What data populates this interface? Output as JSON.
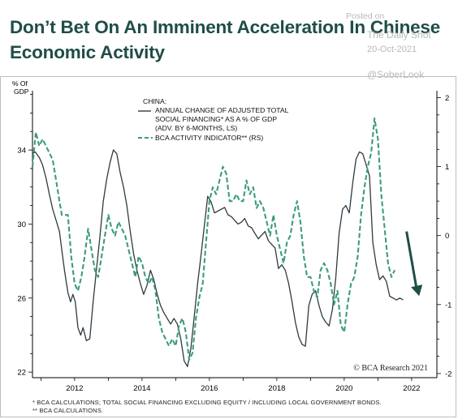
{
  "header": {
    "title": "Don’t Bet On An Imminent Acceleration In Chinese Economic Activity",
    "wm_posted": "Posted on",
    "wm_source": "The Daily Shot",
    "wm_date": "20-Oct-2021",
    "wm_handle": "@SoberLook"
  },
  "footnotes": {
    "line1": "*  BCA CALCULATIONS; TOTAL SOCIAL FINANCING EXCLUDING EQUITY / INCLUDING LOCAL GOVERNMENT BONDS.",
    "line2": "** BCA CALCULATIONS."
  },
  "colors": {
    "title": "#1f4d47",
    "series1": "#2e3a42",
    "series2": "#3c9c7c",
    "arrow": "#1f4d47"
  },
  "chart_data": {
    "type": "line",
    "title": "",
    "ylabel_left": "% Of GDP",
    "legend_header": "CHINA:",
    "legend": [
      "ANNUAL CHANGE OF ADJUSTED TOTAL SOCIAL FINANCING* AS A % OF GDP (ADV. BY 6-MONTHS, LS)",
      "BCA ACTIVITY INDICATOR** (RS)"
    ],
    "legend_lines": [
      "ANNUAL CHANGE OF ADJUSTED TOTAL",
      "SOCIAL FINANCING* AS A % OF GDP",
      "(ADV. BY 6-MONTHS, LS)",
      "BCA ACTIVITY INDICATOR** (RS)"
    ],
    "legend_position": "top-center",
    "copyright": "© BCA Research 2021",
    "x_ticks": [
      2012,
      2014,
      2016,
      2018,
      2020,
      2022
    ],
    "xlim": [
      2010.75,
      2022.75
    ],
    "left_axis": {
      "ticks": [
        22,
        26,
        30,
        34
      ],
      "ylim": [
        21.7,
        37.2
      ]
    },
    "right_axis": {
      "ticks": [
        -2,
        -1,
        0,
        1,
        2
      ],
      "ylim": [
        -2.06,
        2.1
      ]
    },
    "grid": false,
    "series": [
      {
        "axis": "left",
        "style": "solid",
        "x": [
          2010.75,
          2010.83,
          2010.95,
          2011.05,
          2011.15,
          2011.25,
          2011.35,
          2011.45,
          2011.55,
          2011.62,
          2011.7,
          2011.8,
          2011.88,
          2011.95,
          2012.02,
          2012.1,
          2012.18,
          2012.25,
          2012.35,
          2012.45,
          2012.55,
          2012.65,
          2012.75,
          2012.85,
          2012.95,
          2013.05,
          2013.15,
          2013.25,
          2013.35,
          2013.45,
          2013.55,
          2013.65,
          2013.75,
          2013.85,
          2013.95,
          2014.05,
          2014.15,
          2014.25,
          2014.35,
          2014.45,
          2014.55,
          2014.65,
          2014.75,
          2014.85,
          2014.95,
          2015.05,
          2015.15,
          2015.25,
          2015.35,
          2015.45,
          2015.55,
          2015.65,
          2015.75,
          2015.85,
          2015.95,
          2016.05,
          2016.15,
          2016.25,
          2016.35,
          2016.45,
          2016.55,
          2016.65,
          2016.75,
          2016.85,
          2016.95,
          2017.05,
          2017.15,
          2017.25,
          2017.35,
          2017.45,
          2017.55,
          2017.65,
          2017.75,
          2017.85,
          2017.95,
          2018.05,
          2018.15,
          2018.25,
          2018.35,
          2018.45,
          2018.55,
          2018.65,
          2018.75,
          2018.85,
          2018.95,
          2019.05,
          2019.15,
          2019.25,
          2019.35,
          2019.45,
          2019.55,
          2019.65,
          2019.75,
          2019.85,
          2019.95,
          2020.05,
          2020.15,
          2020.25,
          2020.35,
          2020.45,
          2020.55,
          2020.65,
          2020.75,
          2020.85,
          2020.95,
          2021.05,
          2021.15,
          2021.25,
          2021.35,
          2021.45,
          2021.55,
          2021.65,
          2021.75
        ],
        "y": [
          33.8,
          33.9,
          33.6,
          33.2,
          32.5,
          31.6,
          30.8,
          30.2,
          29.6,
          28.6,
          27.5,
          26.3,
          25.8,
          26.2,
          25.8,
          24.4,
          24.0,
          24.4,
          23.7,
          23.8,
          25.8,
          27.6,
          29.3,
          31.2,
          32.4,
          33.3,
          34.0,
          33.8,
          32.8,
          32.0,
          31.0,
          29.6,
          28.4,
          27.5,
          26.8,
          26.2,
          26.7,
          27.5,
          27.0,
          26.2,
          25.6,
          25.2,
          24.9,
          24.6,
          24.9,
          24.6,
          23.8,
          22.6,
          22.3,
          23.3,
          25.0,
          26.8,
          28.3,
          29.9,
          31.5,
          31.2,
          30.6,
          30.7,
          30.8,
          30.9,
          30.5,
          30.4,
          30.2,
          30.0,
          30.1,
          30.3,
          29.9,
          29.8,
          29.5,
          29.2,
          29.4,
          29.6,
          29.1,
          28.9,
          28.7,
          27.6,
          27.8,
          27.5,
          26.8,
          25.8,
          24.7,
          23.9,
          23.5,
          23.4,
          25.6,
          26.2,
          26.4,
          25.6,
          25.0,
          24.7,
          24.5,
          25.4,
          27.1,
          29.5,
          30.8,
          31.0,
          30.6,
          32.2,
          33.5,
          33.9,
          33.8,
          33.2,
          32.6,
          29.0,
          27.8,
          27.0,
          27.2,
          26.9,
          26.1,
          26.0,
          25.9,
          26.0,
          25.9
        ]
      },
      {
        "axis": "right",
        "style": "dashed",
        "x": [
          2010.75,
          2010.85,
          2010.95,
          2011.05,
          2011.15,
          2011.25,
          2011.35,
          2011.45,
          2011.55,
          2011.62,
          2011.7,
          2011.8,
          2011.9,
          2012.0,
          2012.1,
          2012.2,
          2012.3,
          2012.4,
          2012.5,
          2012.6,
          2012.7,
          2012.8,
          2012.9,
          2013.0,
          2013.1,
          2013.2,
          2013.3,
          2013.4,
          2013.5,
          2013.6,
          2013.7,
          2013.8,
          2013.9,
          2014.0,
          2014.1,
          2014.2,
          2014.3,
          2014.4,
          2014.5,
          2014.6,
          2014.7,
          2014.8,
          2014.9,
          2015.0,
          2015.1,
          2015.2,
          2015.3,
          2015.4,
          2015.5,
          2015.6,
          2015.7,
          2015.8,
          2015.9,
          2016.0,
          2016.1,
          2016.2,
          2016.3,
          2016.4,
          2016.5,
          2016.6,
          2016.7,
          2016.8,
          2016.9,
          2017.0,
          2017.1,
          2017.2,
          2017.3,
          2017.4,
          2017.5,
          2017.6,
          2017.7,
          2017.8,
          2017.9,
          2018.0,
          2018.1,
          2018.2,
          2018.3,
          2018.4,
          2018.5,
          2018.6,
          2018.7,
          2018.8,
          2018.9,
          2019.0,
          2019.1,
          2019.2,
          2019.3,
          2019.4,
          2019.5,
          2019.6,
          2019.7,
          2019.8,
          2019.9,
          2020.0,
          2020.1,
          2020.2,
          2020.3,
          2020.4,
          2020.5,
          2020.6,
          2020.7,
          2020.8,
          2020.9,
          2021.0,
          2021.1,
          2021.2,
          2021.3,
          2021.4,
          2021.5
        ],
        "y": [
          1.0,
          1.5,
          1.3,
          1.4,
          1.3,
          1.2,
          1.1,
          0.8,
          0.5,
          0.3,
          0.3,
          0.3,
          -0.3,
          -0.7,
          -0.8,
          -0.6,
          -0.3,
          0.1,
          -0.2,
          -0.5,
          -0.6,
          -0.3,
          0.0,
          0.3,
          0.1,
          0.0,
          0.2,
          0.1,
          0.0,
          -0.2,
          -0.4,
          -0.6,
          -0.3,
          -0.4,
          -0.6,
          -0.7,
          -0.6,
          -0.8,
          -1.2,
          -1.4,
          -1.5,
          -1.6,
          -1.5,
          -1.6,
          -1.3,
          -1.2,
          -1.4,
          -1.8,
          -1.7,
          -1.2,
          -0.9,
          -0.7,
          -0.1,
          0.5,
          0.7,
          0.6,
          0.8,
          1.0,
          0.9,
          0.5,
          0.5,
          0.6,
          0.5,
          0.5,
          0.8,
          0.6,
          0.7,
          0.4,
          0.5,
          0.4,
          0.2,
          0.0,
          0.3,
          0.0,
          -0.2,
          -0.4,
          -0.1,
          0.0,
          0.3,
          0.5,
          0.2,
          -0.3,
          -0.6,
          -0.6,
          -0.8,
          -0.9,
          -0.5,
          -0.4,
          -0.5,
          -0.7,
          -1.0,
          -0.8,
          -1.3,
          -1.4,
          -1.0,
          -0.7,
          -0.6,
          -0.3,
          0.3,
          0.7,
          1.0,
          1.2,
          1.7,
          1.4,
          0.6,
          0.1,
          -0.4,
          -0.6,
          -0.5
        ]
      }
    ],
    "annotations": [
      "downward arrow"
    ]
  }
}
